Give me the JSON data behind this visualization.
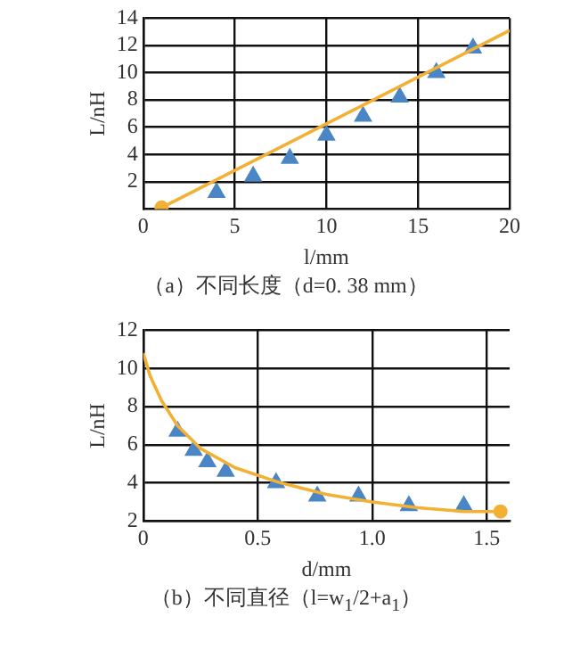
{
  "chart_data": [
    {
      "type": "scatter",
      "title": "（a）不同长度（d=0. 38 mm）",
      "xlabel": "l/mm",
      "ylabel": "L/nH",
      "xlim": [
        0,
        20
      ],
      "xticks": [
        0,
        5,
        10,
        15,
        20
      ],
      "ylim": [
        0,
        14
      ],
      "yticks": [
        2,
        4,
        6,
        8,
        10,
        12,
        14
      ],
      "grid": true,
      "legend": false,
      "series": [
        {
          "type": "line",
          "color": "#f2b134",
          "marker": "none",
          "x": [
            1,
            20
          ],
          "values": [
            0.1,
            13.1
          ]
        },
        {
          "type": "scatter",
          "color": "#f2b134",
          "marker": "circle",
          "x": [
            1
          ],
          "values": [
            0.1
          ]
        },
        {
          "type": "scatter",
          "color": "#4a86c5",
          "marker": "triangle",
          "x": [
            4,
            6,
            8,
            10,
            12,
            14,
            16,
            18
          ],
          "values": [
            1.2,
            2.4,
            3.7,
            5.4,
            6.8,
            8.2,
            10,
            11.8
          ]
        }
      ]
    },
    {
      "type": "scatter",
      "title": "（b）不同直径（l=w$_{1}$/2+a$_{1}$）",
      "xlabel": "d/mm",
      "ylabel": "L/nH",
      "xlim": [
        0,
        1.6
      ],
      "xticks": [
        0,
        {
          "value": 0.5,
          "label": "0.5"
        },
        {
          "value": 1,
          "label": "1.0"
        },
        {
          "value": 1.5,
          "label": "1.5"
        }
      ],
      "ylim": [
        2,
        12
      ],
      "yticks": [
        2,
        4,
        6,
        8,
        10,
        12
      ],
      "grid": true,
      "legend": false,
      "series": [
        {
          "type": "line",
          "color": "#f2b134",
          "marker": "none",
          "x": [
            0,
            0.03,
            0.08,
            0.15,
            0.25,
            0.4,
            0.6,
            0.8,
            1,
            1.2,
            1.4,
            1.56
          ],
          "values": [
            10.8,
            9.6,
            8.3,
            7,
            5.8,
            4.8,
            4,
            3.4,
            3,
            2.7,
            2.5,
            2.5
          ]
        },
        {
          "type": "scatter",
          "color": "#f2b134",
          "marker": "circle",
          "x": [
            1.56
          ],
          "values": [
            2.5
          ]
        },
        {
          "type": "scatter",
          "color": "#4a86c5",
          "marker": "triangle",
          "x": [
            0.15,
            0.22,
            0.28,
            0.36,
            0.58,
            0.76,
            0.94,
            1.16,
            1.4
          ],
          "values": [
            6.7,
            5.7,
            5.1,
            4.6,
            4,
            3.3,
            3.3,
            2.8,
            2.8
          ]
        }
      ]
    }
  ]
}
